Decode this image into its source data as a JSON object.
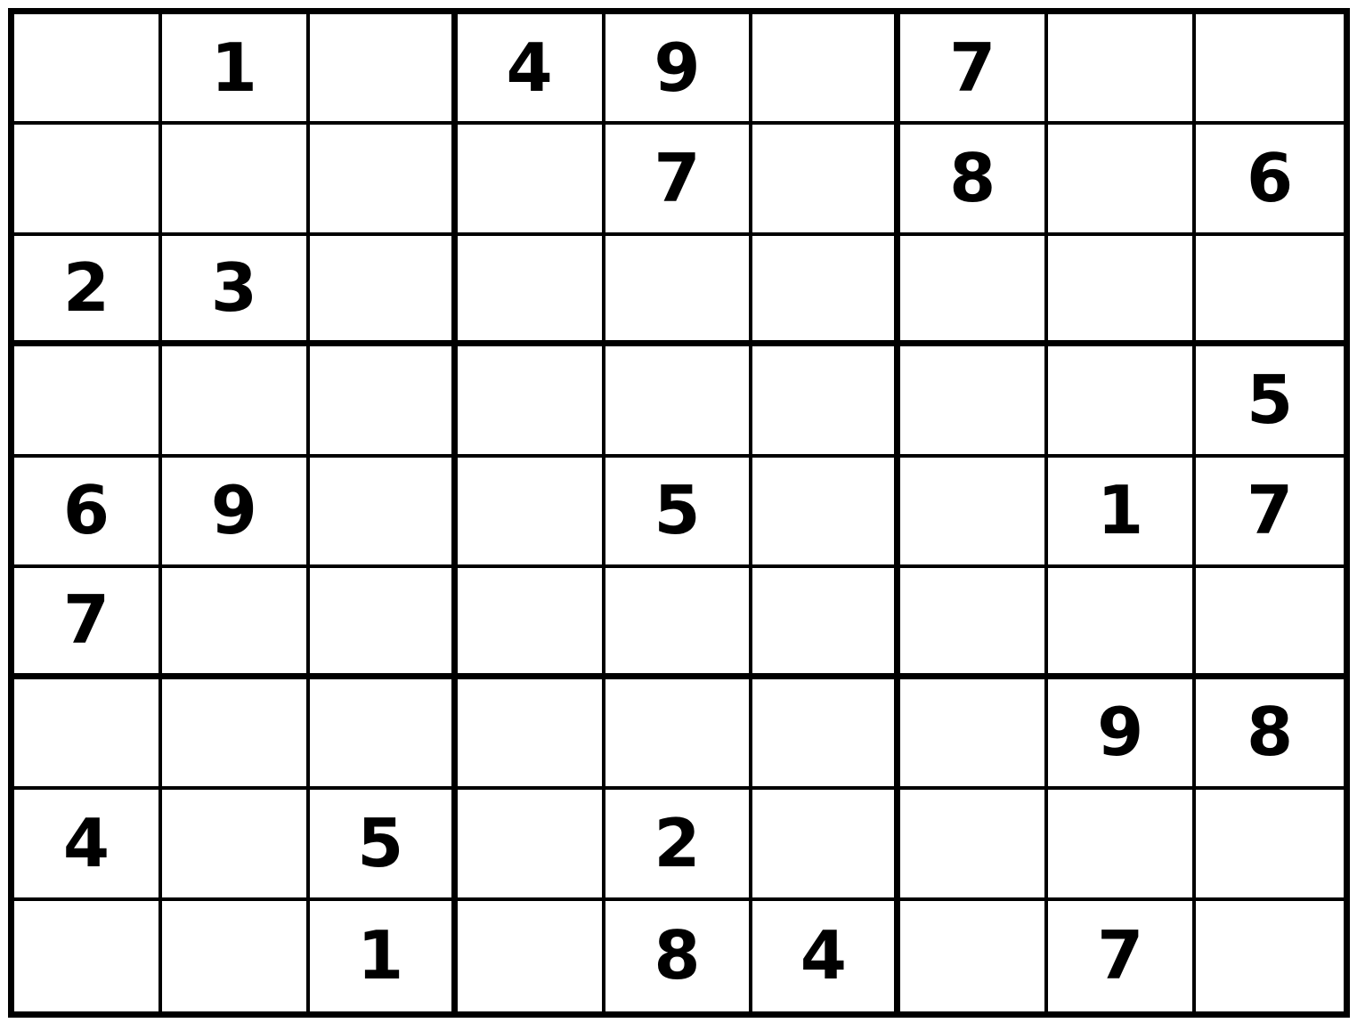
{
  "app": {
    "name": "sudoku-puzzle"
  },
  "colors": {
    "background": "#ffffff",
    "grid_line": "#000000",
    "digit": "#000000"
  },
  "grid": {
    "size": 9,
    "block_size": 3,
    "givens_count": 25,
    "rows": [
      [
        "",
        "1",
        "",
        "4",
        "9",
        "",
        "7",
        "",
        ""
      ],
      [
        "",
        "",
        "",
        "",
        "7",
        "",
        "8",
        "",
        "6"
      ],
      [
        "2",
        "3",
        "",
        "",
        "",
        "",
        "",
        "",
        ""
      ],
      [
        "",
        "",
        "",
        "",
        "",
        "",
        "",
        "",
        "5"
      ],
      [
        "6",
        "9",
        "",
        "",
        "5",
        "",
        "",
        "1",
        "7"
      ],
      [
        "7",
        "",
        "",
        "",
        "",
        "",
        "",
        "",
        ""
      ],
      [
        "",
        "",
        "",
        "",
        "",
        "",
        "",
        "9",
        "8"
      ],
      [
        "4",
        "",
        "5",
        "",
        "2",
        "",
        "",
        "",
        ""
      ],
      [
        "",
        "",
        "1",
        "",
        "8",
        "4",
        "",
        "7",
        ""
      ]
    ]
  }
}
